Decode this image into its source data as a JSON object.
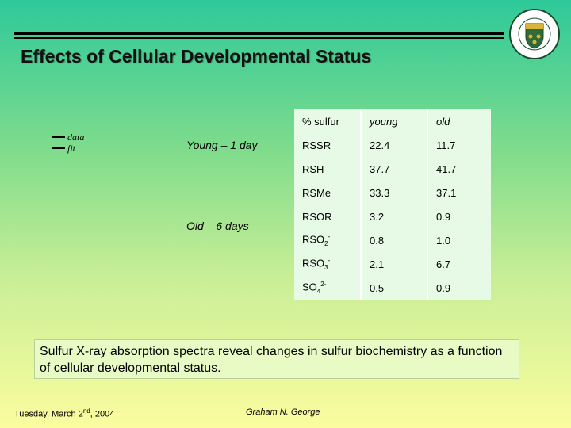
{
  "slide": {
    "title": "Effects of Cellular Developmental Status",
    "legend": {
      "data_label": "data",
      "fit_label": "fit"
    },
    "young_label": "Young – 1 day",
    "old_label": "Old – 6 days",
    "caption": "Sulfur X-ray absorption spectra reveal changes in sulfur biochemistry as a function of cellular developmental status.",
    "footer_date_prefix": "Tuesday, March 2",
    "footer_date_sup": "nd",
    "footer_date_suffix": ", 2004",
    "footer_author": "Graham N. George",
    "crest_icon": "university-of-saskatchewan-crest-icon"
  },
  "table": {
    "header": {
      "species": "% sulfur",
      "young": "young",
      "old": "old"
    },
    "rows": [
      {
        "base": "RSSR",
        "sub": "",
        "sup": "",
        "young": "22.4",
        "old": "11.7"
      },
      {
        "base": "RSH",
        "sub": "",
        "sup": "",
        "young": "37.7",
        "old": "41.7"
      },
      {
        "base": "RSMe",
        "sub": "",
        "sup": "",
        "young": "33.3",
        "old": "37.1"
      },
      {
        "base": "RSOR",
        "sub": "",
        "sup": "",
        "young": "3.2",
        "old": "0.9"
      },
      {
        "base": "RSO",
        "sub": "2",
        "sup": "-",
        "young": "0.8",
        "old": "1.0"
      },
      {
        "base": "RSO",
        "sub": "3",
        "sup": "-",
        "young": "2.1",
        "old": "6.7"
      },
      {
        "base": "SO",
        "sub": "4",
        "sup": "2-",
        "young": "0.5",
        "old": "0.9"
      }
    ]
  }
}
